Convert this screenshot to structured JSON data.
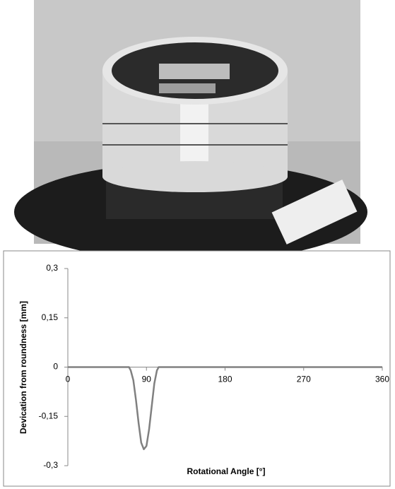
{
  "chart_data": {
    "type": "line",
    "xlabel": "Rotational Angle [°]",
    "ylabel": "Devication from roundness [mm]",
    "x": [
      0,
      70,
      72,
      75,
      78,
      81,
      84,
      87,
      90,
      93,
      96,
      99,
      102,
      104,
      360
    ],
    "series": [
      {
        "color": "#808080",
        "values": [
          0,
          0,
          -0.01,
          -0.04,
          -0.1,
          -0.17,
          -0.23,
          -0.25,
          -0.24,
          -0.19,
          -0.12,
          -0.05,
          -0.01,
          0,
          0
        ]
      }
    ],
    "xlim": [
      0,
      360
    ],
    "xticks": [
      0,
      90,
      180,
      270,
      360
    ],
    "ylim": [
      -0.3,
      0.3
    ],
    "yticks": [
      {
        "value": 0.3,
        "label": "0,3"
      },
      {
        "value": 0.15,
        "label": "0,15"
      },
      0,
      {
        "value": -0.15,
        "label": "-0,15"
      },
      {
        "value": -0.3,
        "label": "-0,3"
      }
    ],
    "grid": false
  }
}
